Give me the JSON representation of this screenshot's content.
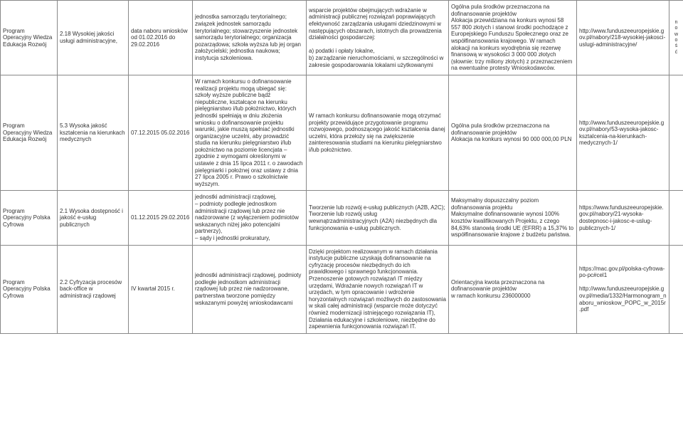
{
  "rows": [
    {
      "program": "Program Operacyjny Wiedza Edukacja Rozwój",
      "dzialanie": "2.18 Wysokiej jakości usługi administracyjne,",
      "termin": "data naboru wniosków od 01.02.2016 do 29.02.2016",
      "beneficjent": "jednostka samorządu terytorialnego; związek jednostek samorządu terytorialnego; stowarzyszenie jednostek samorządu terytorialnego; organizacja pozarządowa; szkoła wyższa lub jej organ założycielski; jednostka naukowa; instytucja szkoleniowa.",
      "typy": "wsparcie projektów obejmujących wdrażanie w administracji publicznej rozwiązań poprawiających efektywność zarządzania usługami dziedzinowymi w następujących obszarach, istotnych dla prowadzenia działalności gospodarczej:\n\na) podatki i opłaty lokalne,\nb) zarządzanie nieruchomościami, w szczególności w zakresie gospodarowania lokalami użytkowanymi",
      "alokacja": "Ogólna pula środków przeznaczona na dofinansowanie projektów\nAlokacja przewidziana na konkurs wynosi 58 557 800 złotych i stanowi środki pochodzące z Europejskiego Funduszu Społecznego oraz ze współfinansowania krajowego. W ramach alokacji na konkurs wyodrębnia się rezerwę finansową w wysokości 3 000 000 złotych (słownie: trzy miliony złotych) z przeznaczeniem na ewentualne protesty Wnioskodawców.",
      "link": "http://www.funduszeeuropejskie.gov.pl/nabory/218-wysokiej-jakosci-uslugi-administracyjne/",
      "margin": "n o w o ś ć"
    },
    {
      "program": "Program Operacyjny Wiedza Edukacja Rozwój",
      "dzialanie": "5.3 Wysoka jakość kształcenia na kierunkach medycznych",
      "termin": "07.12.2015 05.02.2016",
      "beneficjent": "W ramach konkursu o dofinansowanie realizacji projektu mogą ubiegać się: szkoły wyższe publiczne bądź niepubliczne, kształcące na kierunku pielęgniarstwo i/lub położnictwo, których jednostki spełniają w dniu złożenia wniosku o dofinansowanie projektu warunki, jakie muszą spełniać jednostki organizacyjne uczelni, aby prowadzić studia na kierunku pielęgniarstwo i/lub położnictwo na poziomie licencjata – zgodnie z wymogami określonymi w ustawie z dnia 15 lipca 2011 r. o zawodach pielęgniarki i położnej oraz ustawy z dnia 27 lipca 2005 r. Prawo o szkolnictwie wyższym.",
      "typy": "W ramach konkursu dofinansowanie mogą otrzymać projekty przewidujące przygotowanie programu rozwojowego, podnoszącego jakość kształcenia danej uczelni, która przełoży się na zwiększenie zainteresowania studiami na kierunku pielęgniarstwo i/lub położnictwo.",
      "alokacja": "Ogólna pula środków przeznaczona na dofinansowanie projektów\nAlokacja na konkurs wynosi 90 000 000,00 PLN",
      "link": "http://www.funduszeeuropejskie.gov.pl/nabory/53-wysoka-jakosc-ksztalcenia-na-kierunkach-medycznych-1/",
      "margin": ""
    },
    {
      "program": "Program Operacyjny Polska Cyfrowa",
      "dzialanie": "2.1 Wysoka dostępność i jakość e-usług publicznych",
      "termin": "01.12.2015 29.02.2016",
      "beneficjent": "jednostki administracji rządowej,\n– podmioty podległe jednostkom administracji rządowej lub przez nie nadzorowane (z wyłączeniem podmiotów wskazanych niżej jako potencjalni partnerzy),\n– sądy i jednostki prokuratury,",
      "typy": "Tworzenie lub rozwój e-usług publicznych (A2B, A2C);\nTworzenie lub rozwój usług wewnątrzadministracyjnych (A2A) niezbędnych dla funkcjonowania e-usług publicznych.",
      "alokacja": "Maksymalny dopuszczalny poziom dofinansowania projektu\nMaksymalne dofinansowanie wynosi 100% kosztów kwalifikowanych Projektu, z czego 84,63% stanowią środki UE (EFRR) a 15,37% to współfinansowanie krajowe z budżetu państwa.",
      "link": "https://www.funduszeeuropejskie.gov.pl/nabory/21-wysoka-dostepnosc-i-jakosc-e-uslug-publicznych-1/",
      "margin": ""
    },
    {
      "program": "Program Operacyjny Polska Cyfrowa",
      "dzialanie": "2.2 Cyfryzacja procesów back-office w administracji rządowej",
      "termin": "IV kwartał 2015 r.",
      "beneficjent": "jednostki administracji rządowej, podmioty podległe jednostkom administracji rządowej lub przez nie nadzorowane, partnerstwa tworzone pomiędzy wskazanymi powyżej wnioskodawcami",
      "typy": "Dzięki projektom realizowanym w ramach działania instytucje publiczne uzyskają dofinansowanie na cyfryzację procesów niezbędnych do ich prawidłowego i sprawnego funkcjonowania. Przenoszenie gotowych rozwiązań IT między urzędami, Wdrażanie nowych rozwiązań IT w urzędach, w tym opracowanie i wdrożenie horyzontalnych rozwiązań możliwych do zastosowania w skali całej administracji (wsparcie może dotyczyć również modernizacji istniejącego rozwiązania IT), Działania edukacyjne i szkoleniowe, niezbędne do zapewnienia funkcjonowania rozwiązań IT.",
      "alokacja": "Orientacyjna kwota przeznaczona na dofinansowanie projektów\nw ramach konkursu  236000000",
      "link": "https://mac.gov.pl/polska-cyfrowa-po-pc#cel1\n\nhttp://www.funduszeeuropejskie.gov.pl/media/1332/Harmonogram_naboru_wnioskow_POPC_w_2015r.pdf",
      "margin": ""
    }
  ]
}
